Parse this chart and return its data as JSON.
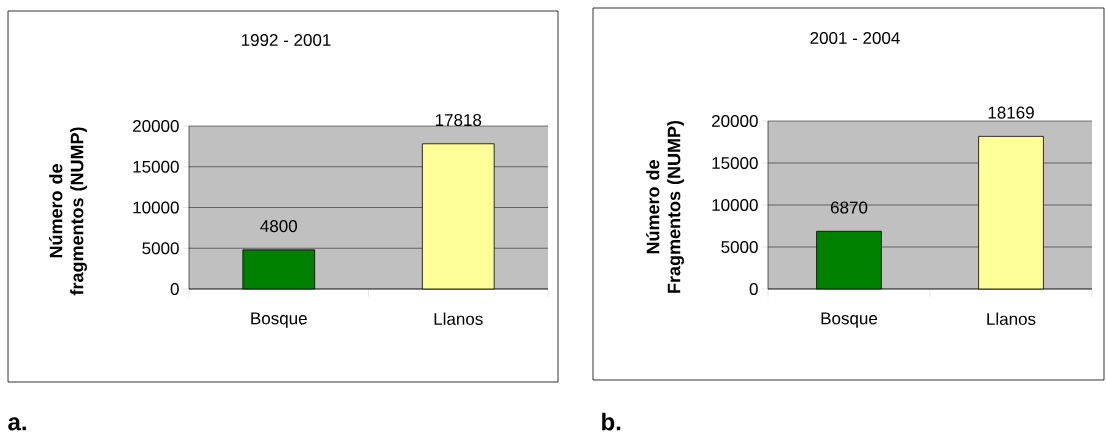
{
  "chart_data": [
    {
      "type": "bar",
      "title": "1992 - 2001",
      "ylabel": "Número de fragmentos (NUMP)",
      "categories": [
        "Bosque",
        "Llanos"
      ],
      "values": [
        4800,
        17818
      ],
      "colors": [
        "#008000",
        "#ffff99"
      ],
      "ylim": [
        0,
        20000
      ],
      "yticks": [
        0,
        5000,
        10000,
        15000,
        20000
      ],
      "grid": "y",
      "data_labels": true,
      "annotations": [
        "a."
      ]
    },
    {
      "type": "bar",
      "title": "2001 - 2004",
      "ylabel": "Número de Fragmentos (NUMP)",
      "categories": [
        "Bosque",
        "Llanos"
      ],
      "values": [
        6870,
        18169
      ],
      "colors": [
        "#008000",
        "#ffff99"
      ],
      "ylim": [
        0,
        20000
      ],
      "yticks": [
        0,
        5000,
        10000,
        15000,
        20000
      ],
      "grid": "y",
      "data_labels": true,
      "annotations": [
        "b."
      ]
    }
  ]
}
